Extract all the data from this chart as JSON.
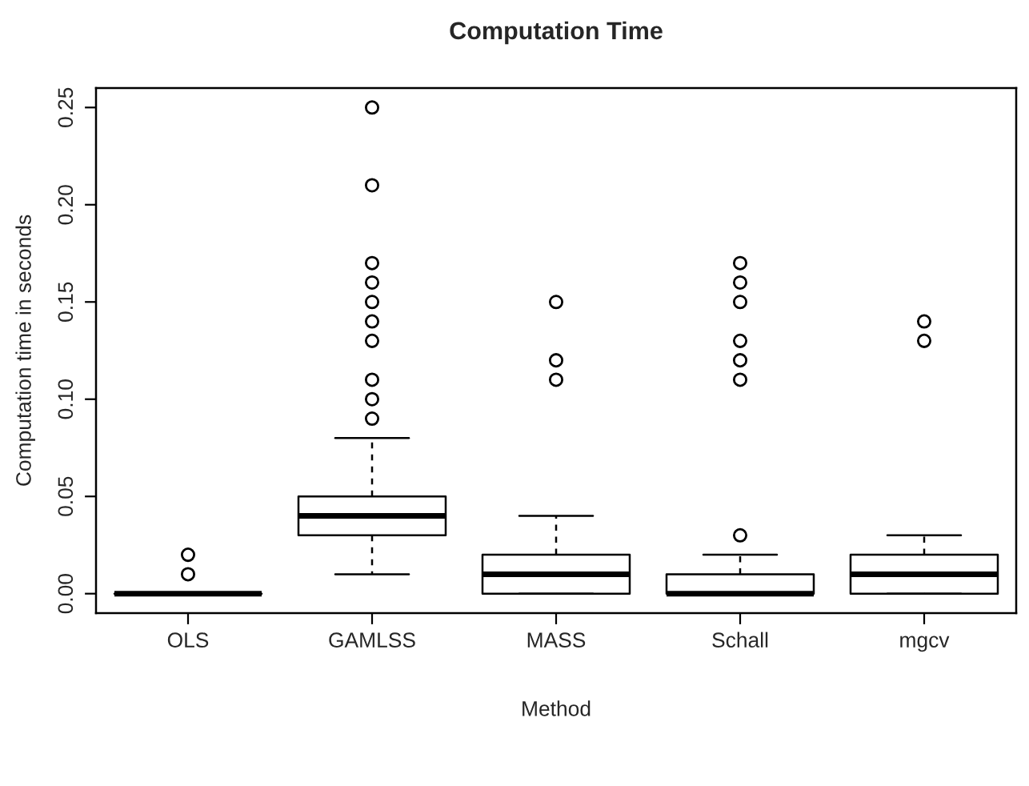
{
  "chart_data": {
    "type": "box",
    "title": "Computation Time",
    "xlabel": "Method",
    "ylabel": "Computation time in seconds",
    "categories": [
      "OLS",
      "GAMLSS",
      "MASS",
      "Schall",
      "mgcv"
    ],
    "boxes": [
      {
        "low": 0,
        "q1": 0,
        "median": 0,
        "q3": 0,
        "high": 0,
        "outliers": [
          0.01,
          0.02
        ]
      },
      {
        "low": 0.01,
        "q1": 0.03,
        "median": 0.04,
        "q3": 0.05,
        "high": 0.08,
        "outliers": [
          0.09,
          0.1,
          0.11,
          0.13,
          0.14,
          0.15,
          0.16,
          0.17,
          0.21,
          0.25
        ]
      },
      {
        "low": 0,
        "q1": 0,
        "median": 0.01,
        "q3": 0.02,
        "high": 0.04,
        "outliers": [
          0.11,
          0.12,
          0.15
        ]
      },
      {
        "low": 0,
        "q1": 0,
        "median": 0,
        "q3": 0.01,
        "high": 0.02,
        "outliers": [
          0.03,
          0.11,
          0.12,
          0.13,
          0.15,
          0.16,
          0.17
        ]
      },
      {
        "low": 0,
        "q1": 0,
        "median": 0.01,
        "q3": 0.02,
        "high": 0.03,
        "outliers": [
          0.13,
          0.14
        ]
      }
    ],
    "ylim": [
      -0.01,
      0.26
    ],
    "yticks": [
      {
        "value": 0,
        "label": "0.00"
      },
      0.05,
      {
        "value": 0.1,
        "label": "0.10"
      },
      0.15,
      {
        "value": 0.2,
        "label": "0.20"
      },
      0.25
    ],
    "grid": false,
    "legend": false
  }
}
